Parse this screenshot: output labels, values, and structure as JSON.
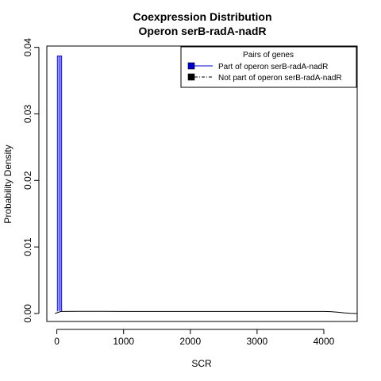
{
  "chart_data": {
    "type": "line",
    "title_line1": "Coexpression Distribution",
    "title_line2": "Operon serB-radA-nadR",
    "xlabel": "SCR",
    "ylabel": "Probability Density",
    "xlim": [
      -150,
      4500
    ],
    "ylim": [
      -0.0012,
      0.0402
    ],
    "x_ticks": [
      0,
      1000,
      2000,
      3000,
      4000
    ],
    "x_tick_labels": [
      "0",
      "1000",
      "2000",
      "3000",
      "4000"
    ],
    "y_ticks": [
      0.0,
      0.01,
      0.02,
      0.03,
      0.04
    ],
    "y_tick_labels": [
      "0.00",
      "0.01",
      "0.02",
      "0.03",
      "0.04"
    ],
    "grid": false,
    "legend": {
      "title": "Pairs of genes",
      "placement": "top-right",
      "entries": [
        {
          "label": "Part of operon serB-radA-nadR",
          "color": "#0000cc",
          "line": "solid"
        },
        {
          "label": "Not part of operon serB-radA-nadR",
          "color": "#000000",
          "line": "dashdot"
        }
      ]
    },
    "series": [
      {
        "name": "Part of operon serB-radA-nadR",
        "color": "#0000cc",
        "x": [
          8,
          8,
          30,
          30,
          30,
          30,
          52,
          52,
          52,
          52,
          72,
          72
        ],
        "y": [
          0.0003,
          0.0387,
          0.0387,
          0.0004,
          0.0004,
          0.0387,
          0.0387,
          0.0004,
          0.0004,
          0.0387,
          0.0387,
          0.0003
        ]
      },
      {
        "name": "Not part of operon serB-radA-nadR",
        "color": "#000000",
        "x": [
          -30,
          0,
          30,
          60,
          100,
          300,
          600,
          1000,
          1500,
          2000,
          2500,
          3000,
          3500,
          3800,
          4000,
          4100,
          4200,
          4300,
          4400,
          4500
        ],
        "y": [
          0.0,
          0.0001,
          0.0002,
          0.0003,
          0.0003,
          0.00032,
          0.00032,
          0.00031,
          0.0003,
          0.0003,
          0.0003,
          0.0003,
          0.00031,
          0.00031,
          0.0003,
          0.00027,
          0.0002,
          0.0001,
          3e-05,
          0.0
        ]
      }
    ]
  }
}
